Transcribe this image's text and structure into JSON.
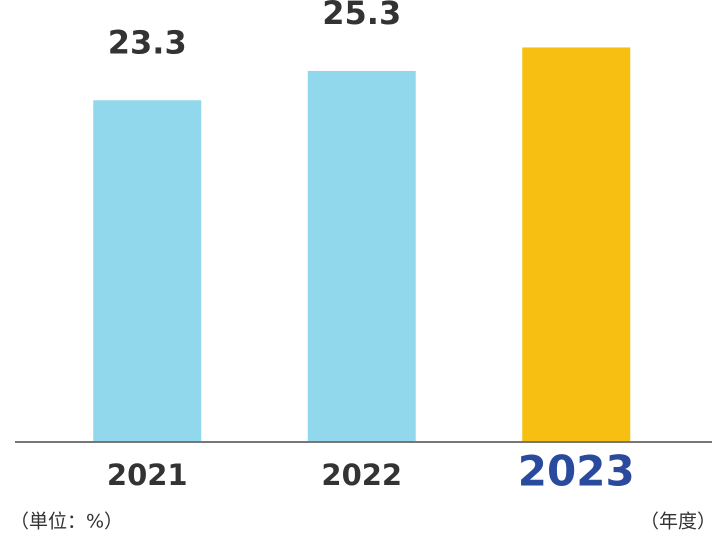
{
  "chart_data": {
    "type": "bar",
    "categories": [
      "2021",
      "2022",
      "2023"
    ],
    "values": [
      23.3,
      25.3,
      26.9
    ],
    "value_labels": [
      "23.3",
      "25.3",
      null
    ],
    "colors": [
      "#92d8ec",
      "#92d8ec",
      "#f6bf12"
    ],
    "highlight_index": 2,
    "ylim": [
      0,
      30
    ],
    "unit_label": "（単位：%）",
    "x_label": "（年度）"
  }
}
